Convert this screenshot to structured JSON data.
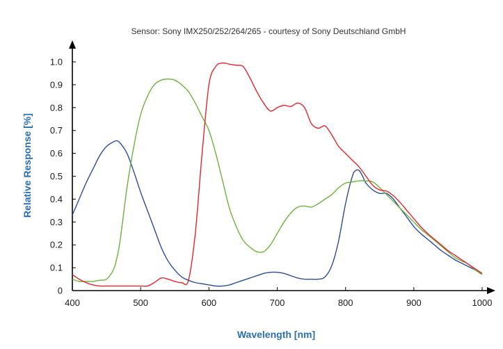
{
  "chart_data": {
    "type": "line",
    "title": "Sensor: Sony IMX250/252/264/265 - courtesy of Sony Deutschland GmbH",
    "xlabel": "Wavelength [nm]",
    "ylabel": "Relative Response [%]",
    "xlim": [
      400,
      1000
    ],
    "ylim": [
      0,
      1.0
    ],
    "x_ticks": [
      "400",
      "500",
      "600",
      "700",
      "800",
      "900",
      "1000"
    ],
    "y_ticks": [
      "0",
      "0.1",
      "0.2",
      "0.3",
      "0.4",
      "0.5",
      "0.6",
      "0.7",
      "0.8",
      "0.9",
      "1.0"
    ],
    "grid": false,
    "legend": "none",
    "series": [
      {
        "color": "#2b4c9b",
        "x": [
          400,
          410,
          420,
          430,
          440,
          450,
          460,
          465,
          470,
          480,
          490,
          500,
          510,
          520,
          530,
          540,
          550,
          560,
          570,
          580,
          590,
          600,
          610,
          620,
          630,
          640,
          650,
          660,
          670,
          680,
          690,
          700,
          710,
          720,
          730,
          740,
          750,
          760,
          770,
          780,
          790,
          800,
          810,
          815,
          820,
          825,
          830,
          840,
          850,
          860,
          870,
          880,
          890,
          900,
          910,
          920,
          930,
          940,
          950,
          960,
          970,
          980,
          990,
          1000
        ],
        "y": [
          0.33,
          0.4,
          0.47,
          0.53,
          0.59,
          0.63,
          0.65,
          0.655,
          0.645,
          0.6,
          0.52,
          0.43,
          0.35,
          0.27,
          0.19,
          0.13,
          0.09,
          0.06,
          0.045,
          0.035,
          0.03,
          0.025,
          0.02,
          0.02,
          0.025,
          0.035,
          0.045,
          0.055,
          0.065,
          0.075,
          0.08,
          0.08,
          0.075,
          0.065,
          0.055,
          0.05,
          0.05,
          0.05,
          0.06,
          0.11,
          0.22,
          0.38,
          0.5,
          0.525,
          0.525,
          0.5,
          0.47,
          0.44,
          0.425,
          0.425,
          0.4,
          0.36,
          0.32,
          0.28,
          0.25,
          0.225,
          0.2,
          0.175,
          0.155,
          0.135,
          0.12,
          0.105,
          0.09,
          0.075
        ]
      },
      {
        "color": "#6cb33e",
        "x": [
          400,
          410,
          420,
          430,
          440,
          450,
          460,
          465,
          470,
          480,
          490,
          500,
          510,
          520,
          530,
          540,
          550,
          560,
          570,
          580,
          590,
          600,
          610,
          620,
          630,
          640,
          650,
          660,
          670,
          680,
          690,
          700,
          710,
          720,
          730,
          740,
          750,
          760,
          770,
          780,
          790,
          800,
          810,
          820,
          830,
          840,
          850,
          860,
          870,
          880,
          890,
          900,
          910,
          920,
          930,
          940,
          950,
          960,
          970,
          980,
          990,
          1000
        ],
        "y": [
          0.05,
          0.04,
          0.04,
          0.04,
          0.045,
          0.05,
          0.09,
          0.14,
          0.22,
          0.45,
          0.63,
          0.77,
          0.85,
          0.9,
          0.92,
          0.925,
          0.92,
          0.9,
          0.87,
          0.82,
          0.76,
          0.7,
          0.6,
          0.48,
          0.36,
          0.28,
          0.22,
          0.19,
          0.17,
          0.17,
          0.2,
          0.25,
          0.3,
          0.34,
          0.365,
          0.37,
          0.365,
          0.38,
          0.4,
          0.42,
          0.45,
          0.47,
          0.475,
          0.48,
          0.48,
          0.475,
          0.45,
          0.42,
          0.39,
          0.36,
          0.33,
          0.3,
          0.27,
          0.245,
          0.22,
          0.195,
          0.17,
          0.145,
          0.13,
          0.115,
          0.09,
          0.07
        ]
      },
      {
        "color": "#e8232a",
        "x": [
          400,
          410,
          420,
          430,
          440,
          450,
          460,
          470,
          480,
          490,
          500,
          510,
          520,
          530,
          540,
          550,
          560,
          570,
          580,
          590,
          600,
          610,
          620,
          630,
          640,
          650,
          660,
          670,
          680,
          690,
          700,
          710,
          720,
          730,
          740,
          750,
          760,
          770,
          780,
          790,
          800,
          810,
          820,
          830,
          840,
          850,
          860,
          870,
          880,
          890,
          900,
          910,
          920,
          930,
          940,
          950,
          960,
          970,
          980,
          990,
          1000
        ],
        "y": [
          0.07,
          0.05,
          0.035,
          0.025,
          0.02,
          0.02,
          0.02,
          0.02,
          0.02,
          0.02,
          0.02,
          0.02,
          0.035,
          0.055,
          0.05,
          0.04,
          0.035,
          0.045,
          0.25,
          0.6,
          0.9,
          0.98,
          0.995,
          0.99,
          0.985,
          0.98,
          0.93,
          0.87,
          0.82,
          0.785,
          0.8,
          0.81,
          0.805,
          0.82,
          0.8,
          0.73,
          0.71,
          0.72,
          0.68,
          0.63,
          0.6,
          0.57,
          0.54,
          0.5,
          0.46,
          0.44,
          0.435,
          0.415,
          0.385,
          0.35,
          0.315,
          0.28,
          0.25,
          0.225,
          0.2,
          0.175,
          0.155,
          0.135,
          0.115,
          0.095,
          0.075
        ]
      }
    ]
  }
}
